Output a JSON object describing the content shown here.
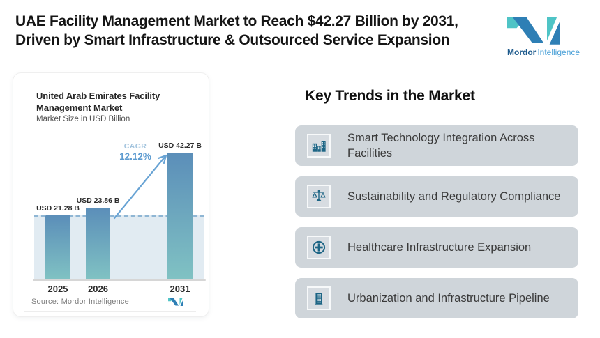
{
  "header": {
    "title_line1": "UAE Facility Management Market to Reach $42.27 Billion by 2031,",
    "title_line2": "Driven by Smart Infrastructure & Outsourced Service Expansion",
    "brand_bold": "Mordor",
    "brand_light": "Intelligence"
  },
  "colors": {
    "brand_teal": "#4FC4C6",
    "brand_blue": "#2E7FB5",
    "icon_blue": "#1D6585",
    "bar_top": "#5B8EB9",
    "bar_bottom": "#80C2C3",
    "band": "#E1EBF2",
    "dashed_line": "#8FB6D4",
    "trend_card_bg": "#CFD5DA",
    "arrow": "#68A3D4"
  },
  "chart": {
    "title_line1": "United Arab Emirates Facility",
    "title_line2": "Management Market",
    "subtitle": "Market Size in USD Billion",
    "cagr_label": "CAGR",
    "cagr_value": "12.12%",
    "source": "Source: Mordor Intelligence"
  },
  "chart_data": {
    "type": "bar",
    "title": "United Arab Emirates Facility Management Market",
    "subtitle": "Market Size in USD Billion",
    "unit": "USD Billion",
    "categories": [
      "2025",
      "2026",
      "2031"
    ],
    "values": [
      21.28,
      23.86,
      42.27
    ],
    "value_labels": [
      "USD 21.28 B",
      "USD 23.86 B",
      "USD 42.27 B"
    ],
    "cagr_pct": 12.12,
    "ylim": [
      0,
      45
    ],
    "grid": false,
    "annotations": [
      "CAGR 12.12%",
      "dashed baseline at 2025 level"
    ]
  },
  "trends": {
    "heading": "Key Trends in the Market",
    "items": [
      {
        "icon": "buildings-icon",
        "label": "Smart Technology Integration Across Facilities"
      },
      {
        "icon": "scales-icon",
        "label": "Sustainability and Regulatory Compliance"
      },
      {
        "icon": "medical-cross-icon",
        "label": "Healthcare Infrastructure Expansion"
      },
      {
        "icon": "building-icon",
        "label": "Urbanization and Infrastructure Pipeline"
      }
    ]
  }
}
